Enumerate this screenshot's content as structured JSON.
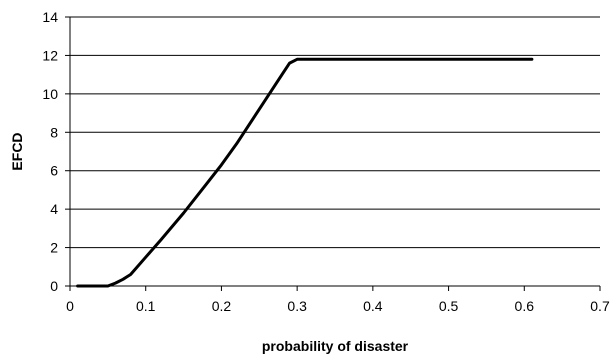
{
  "chart_data": {
    "type": "line",
    "title": "",
    "xlabel": "probability of disaster",
    "ylabel": "EFCD",
    "xlim": [
      0,
      0.7
    ],
    "ylim": [
      0,
      14
    ],
    "x_ticks": [
      "0",
      "0.1",
      "0.2",
      "0.3",
      "0.4",
      "0.5",
      "0.6",
      "0.7"
    ],
    "y_ticks": [
      "0",
      "2",
      "4",
      "6",
      "8",
      "10",
      "12",
      "14"
    ],
    "grid": "horizontal",
    "legend": "none",
    "line_color": "#000000",
    "series": [
      {
        "x": [
          0.01,
          0.05,
          0.06,
          0.07,
          0.08,
          0.1,
          0.12,
          0.15,
          0.18,
          0.2,
          0.22,
          0.25,
          0.28,
          0.29,
          0.3,
          0.35,
          0.4,
          0.45,
          0.5,
          0.55,
          0.61
        ],
        "y": [
          0,
          0,
          0.15,
          0.35,
          0.6,
          1.5,
          2.4,
          3.8,
          5.3,
          6.3,
          7.4,
          9.2,
          11.0,
          11.6,
          11.8,
          11.8,
          11.8,
          11.8,
          11.8,
          11.8,
          11.8
        ]
      }
    ]
  }
}
